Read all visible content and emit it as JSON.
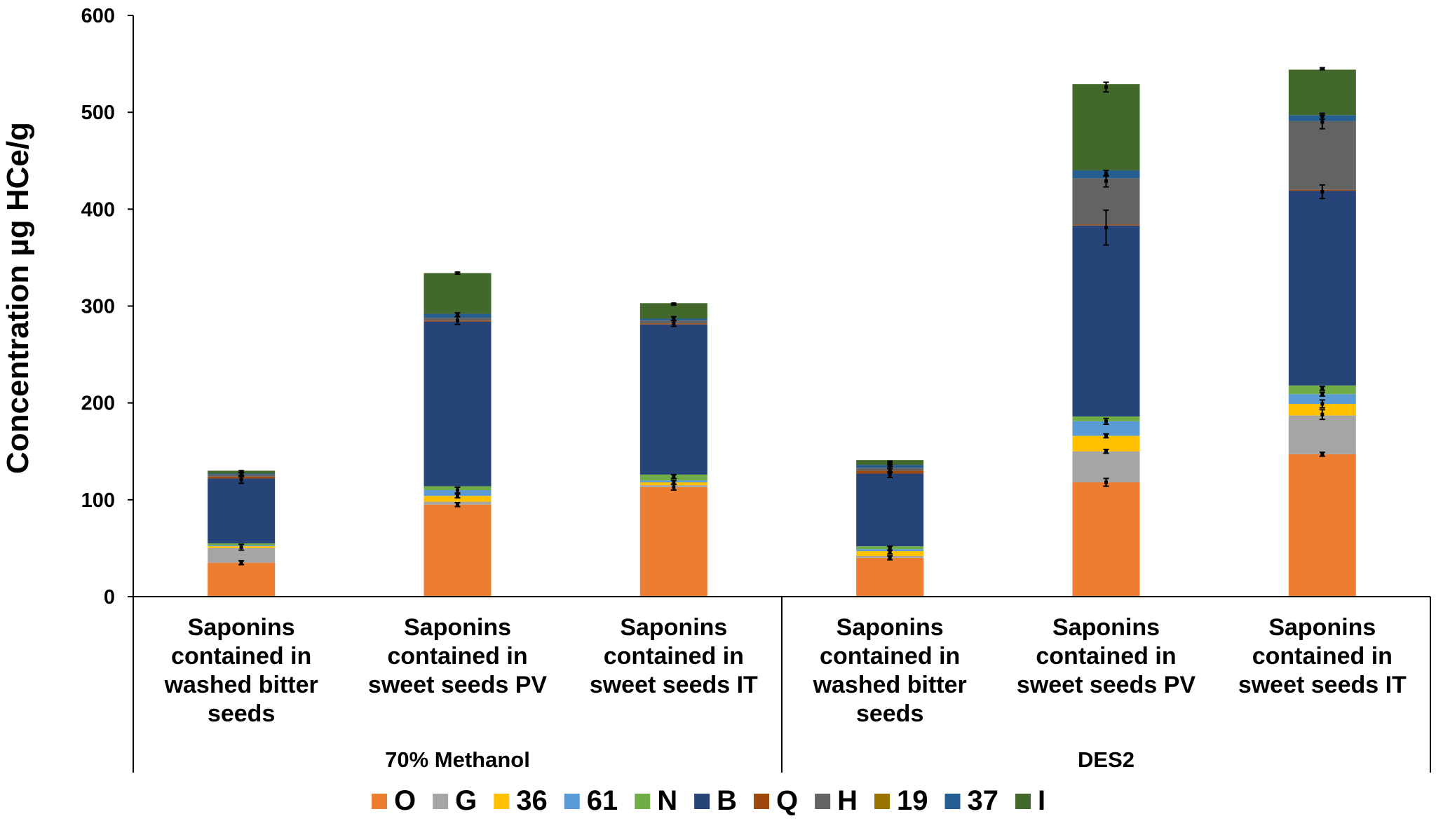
{
  "chart_data": {
    "type": "bar",
    "stacked": true,
    "ylabel": "Concentration µg HCe/g",
    "ylim": [
      0,
      600
    ],
    "yticks": [
      0,
      100,
      200,
      300,
      400,
      500,
      600
    ],
    "grid": false,
    "legend_position": "bottom",
    "categories": [
      [
        "Saponins",
        "contained in",
        "washed bitter",
        "seeds"
      ],
      [
        "Saponins",
        "contained in",
        "sweet seeds PV"
      ],
      [
        "Saponins",
        "contained in",
        "sweet seeds IT"
      ],
      [
        "Saponins",
        "contained in",
        "washed bitter",
        "seeds"
      ],
      [
        "Saponins",
        "contained in",
        "sweet seeds PV"
      ],
      [
        "Saponins",
        "contained in",
        "sweet seeds IT"
      ]
    ],
    "groups": [
      {
        "label": "70% Methanol",
        "categories": [
          0,
          1,
          2
        ]
      },
      {
        "label": "DES2",
        "categories": [
          3,
          4,
          5
        ]
      }
    ],
    "series": [
      {
        "name": "O",
        "color": "#ED7D31",
        "values": [
          35,
          95,
          113,
          40,
          118,
          147
        ]
      },
      {
        "name": "G",
        "color": "#A5A5A5",
        "values": [
          15,
          3,
          2,
          2,
          32,
          40
        ]
      },
      {
        "name": "36",
        "color": "#FFC000",
        "values": [
          2,
          6,
          3,
          5,
          16,
          12
        ]
      },
      {
        "name": "61",
        "color": "#5B9BD5",
        "values": [
          1,
          6,
          2,
          2,
          15,
          10
        ]
      },
      {
        "name": "N",
        "color": "#70AD47",
        "values": [
          2,
          4,
          6,
          3,
          5,
          9
        ]
      },
      {
        "name": "B",
        "color": "#264478",
        "values": [
          67,
          170,
          155,
          75,
          197,
          201
        ]
      },
      {
        "name": "Q",
        "color": "#9E480E",
        "values": [
          2,
          1,
          1,
          3,
          1,
          1
        ]
      },
      {
        "name": "H",
        "color": "#636363",
        "values": [
          2,
          3,
          3,
          3,
          48,
          71
        ]
      },
      {
        "name": "19",
        "color": "#997300",
        "values": [
          0,
          0,
          0,
          0,
          0,
          0
        ]
      },
      {
        "name": "37",
        "color": "#255E91",
        "values": [
          1,
          4,
          2,
          3,
          8,
          6
        ]
      },
      {
        "name": "I",
        "color": "#43682B",
        "values": [
          3,
          42,
          16,
          5,
          89,
          47
        ]
      }
    ],
    "errors": [
      [
        {
          "y": 35,
          "e": 2
        },
        {
          "y": 51,
          "e": 3
        },
        {
          "y": 121,
          "e": 4
        },
        {
          "y": 126,
          "e": 2
        },
        {
          "y": 129,
          "e": 1
        }
      ],
      [
        {
          "y": 95,
          "e": 2
        },
        {
          "y": 104,
          "e": 2
        },
        {
          "y": 110,
          "e": 3
        },
        {
          "y": 285,
          "e": 4
        },
        {
          "y": 291,
          "e": 2
        },
        {
          "y": 334,
          "e": 1
        }
      ],
      [
        {
          "y": 113,
          "e": 3
        },
        {
          "y": 118,
          "e": 2
        },
        {
          "y": 124,
          "e": 2
        },
        {
          "y": 282,
          "e": 3
        },
        {
          "y": 287,
          "e": 2
        },
        {
          "y": 302,
          "e": 1
        }
      ],
      [
        {
          "y": 40,
          "e": 2
        },
        {
          "y": 46,
          "e": 2
        },
        {
          "y": 50,
          "e": 2
        },
        {
          "y": 126,
          "e": 3
        },
        {
          "y": 131,
          "e": 3
        },
        {
          "y": 135,
          "e": 3
        },
        {
          "y": 138,
          "e": 2
        }
      ],
      [
        {
          "y": 118,
          "e": 4
        },
        {
          "y": 150,
          "e": 2
        },
        {
          "y": 166,
          "e": 2
        },
        {
          "y": 181,
          "e": 3
        },
        {
          "y": 381,
          "e": 18
        },
        {
          "y": 429,
          "e": 6
        },
        {
          "y": 437,
          "e": 3
        },
        {
          "y": 526,
          "e": 5
        }
      ],
      [
        {
          "y": 147,
          "e": 2
        },
        {
          "y": 188,
          "e": 5
        },
        {
          "y": 199,
          "e": 4
        },
        {
          "y": 209,
          "e": 2
        },
        {
          "y": 215,
          "e": 2
        },
        {
          "y": 418,
          "e": 7
        },
        {
          "y": 490,
          "e": 7
        },
        {
          "y": 496,
          "e": 3
        },
        {
          "y": 545,
          "e": 1
        }
      ]
    ]
  }
}
